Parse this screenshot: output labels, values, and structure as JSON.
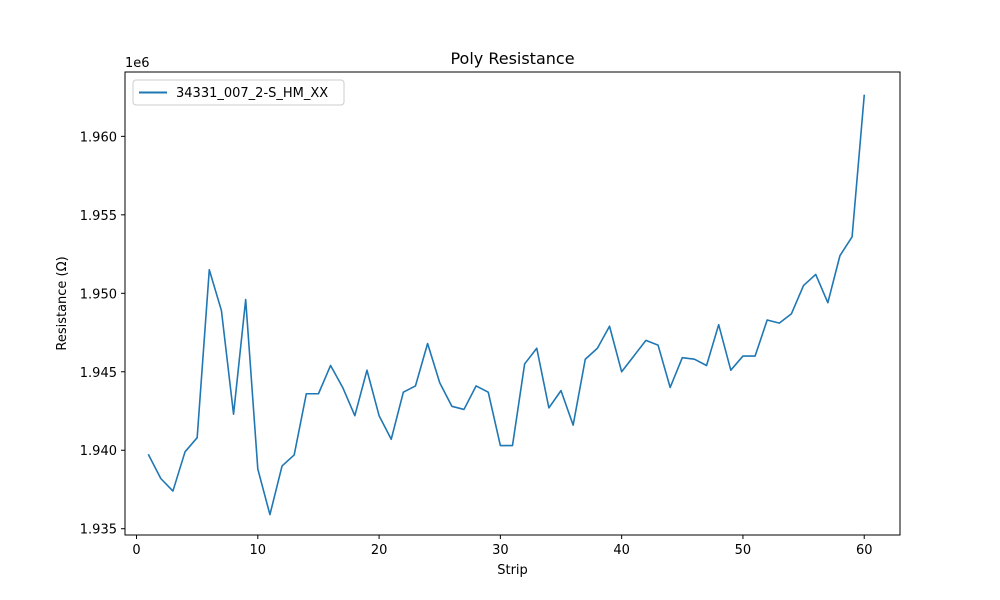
{
  "chart_data": {
    "type": "line",
    "title": "Poly Resistance",
    "xlabel": "Strip",
    "ylabel": "Resistance (Ω)",
    "y_offset_label": "1e6",
    "y_scale_factor": 1000000,
    "xlim": [
      -0.95,
      62.95
    ],
    "ylim": [
      1934.6,
      1964.1
    ],
    "x_ticks": [
      0,
      10,
      20,
      30,
      40,
      50,
      60
    ],
    "y_ticks": [
      1.935,
      1.94,
      1.945,
      1.95,
      1.955,
      1.96
    ],
    "y_tick_labels": [
      "1.935",
      "1.940",
      "1.945",
      "1.950",
      "1.955",
      "1.960"
    ],
    "grid": false,
    "legend_position": "upper-left",
    "colors": {
      "series": "#1f77b4"
    },
    "series": [
      {
        "name": "34331_007_2-S_HM_XX",
        "x": [
          1,
          2,
          3,
          4,
          5,
          6,
          7,
          8,
          9,
          10,
          11,
          12,
          13,
          14,
          15,
          16,
          17,
          18,
          19,
          20,
          21,
          22,
          23,
          24,
          25,
          26,
          27,
          28,
          29,
          30,
          31,
          32,
          33,
          34,
          35,
          36,
          37,
          38,
          39,
          40,
          41,
          42,
          43,
          44,
          45,
          46,
          47,
          48,
          49,
          50,
          51,
          52,
          53,
          54,
          55,
          56,
          57,
          58,
          59,
          60
        ],
        "y": [
          1939.7,
          1938.2,
          1937.4,
          1939.9,
          1940.8,
          1951.5,
          1948.9,
          1942.3,
          1949.6,
          1938.8,
          1935.9,
          1939.0,
          1939.7,
          1943.6,
          1943.6,
          1945.4,
          1944.0,
          1942.2,
          1945.1,
          1942.2,
          1940.7,
          1943.7,
          1944.1,
          1946.8,
          1944.3,
          1942.8,
          1942.6,
          1944.1,
          1943.7,
          1940.3,
          1940.3,
          1945.5,
          1946.5,
          1942.7,
          1943.8,
          1941.6,
          1945.8,
          1946.5,
          1947.9,
          1945.0,
          1946.0,
          1947.0,
          1946.7,
          1944.0,
          1945.9,
          1945.8,
          1945.4,
          1948.0,
          1945.1,
          1946.0,
          1946.0,
          1948.3,
          1948.1,
          1948.7,
          1950.5,
          1951.2,
          1949.4,
          1952.4,
          1953.6,
          1962.6
        ]
      }
    ]
  }
}
